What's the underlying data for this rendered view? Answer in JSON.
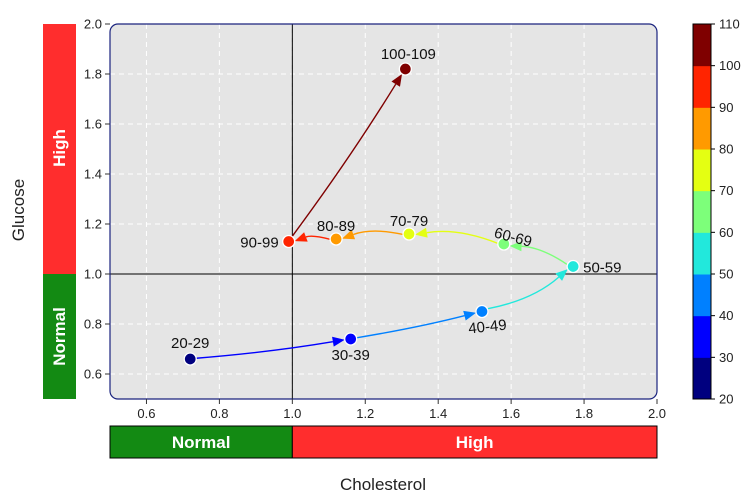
{
  "chart_data": {
    "type": "scatter",
    "xlabel": "Cholesterol",
    "ylabel": "Glucose",
    "xlim": [
      0.5,
      2.0
    ],
    "ylim": [
      0.5,
      2.0
    ],
    "x_ticks": [
      "0.6",
      "0.8",
      "1.0",
      "1.2",
      "1.4",
      "1.6",
      "1.8",
      "2.0"
    ],
    "y_ticks": [
      "0.6",
      "0.8",
      "1.0",
      "1.2",
      "1.4",
      "1.6",
      "1.8",
      "2.0"
    ],
    "grid": true,
    "reference_lines": {
      "x": 1.0,
      "y": 1.0
    },
    "points": [
      {
        "label": "20-29",
        "x": 0.72,
        "y": 0.66,
        "age": 25,
        "color": "#00007f"
      },
      {
        "label": "30-39",
        "x": 1.16,
        "y": 0.74,
        "age": 35,
        "color": "#0000ff"
      },
      {
        "label": "40-49",
        "x": 1.52,
        "y": 0.85,
        "age": 45,
        "color": "#0080ff"
      },
      {
        "label": "50-59",
        "x": 1.77,
        "y": 1.03,
        "age": 55,
        "color": "#22e8dc"
      },
      {
        "label": "60-69",
        "x": 1.58,
        "y": 1.12,
        "age": 65,
        "color": "#7dff7a"
      },
      {
        "label": "70-79",
        "x": 1.32,
        "y": 1.16,
        "age": 75,
        "color": "#e4ff12"
      },
      {
        "label": "80-89",
        "x": 1.12,
        "y": 1.14,
        "age": 85,
        "color": "#ff9a00"
      },
      {
        "label": "90-99",
        "x": 0.99,
        "y": 1.13,
        "age": 95,
        "color": "#ff2400"
      },
      {
        "label": "100-109",
        "x": 1.31,
        "y": 1.82,
        "age": 105,
        "color": "#7f0000"
      }
    ],
    "x_bands": [
      {
        "label": "Normal",
        "from": 0.5,
        "to": 1.0,
        "color": "#138a13"
      },
      {
        "label": "High",
        "from": 1.0,
        "to": 2.0,
        "color": "#ff2d2d"
      }
    ],
    "y_bands": [
      {
        "label": "Normal",
        "from": 0.5,
        "to": 1.0,
        "color": "#138a13"
      },
      {
        "label": "High",
        "from": 1.0,
        "to": 2.0,
        "color": "#ff2d2d"
      }
    ],
    "colorbar": {
      "min": 20,
      "max": 110,
      "ticks": [
        "20",
        "30",
        "40",
        "50",
        "60",
        "70",
        "80",
        "90",
        "100",
        "110"
      ],
      "colors": [
        "#00007f",
        "#0000ff",
        "#0080ff",
        "#22e8dc",
        "#7dff7a",
        "#e4ff12",
        "#ff9a00",
        "#ff2400",
        "#7f0000"
      ]
    }
  }
}
